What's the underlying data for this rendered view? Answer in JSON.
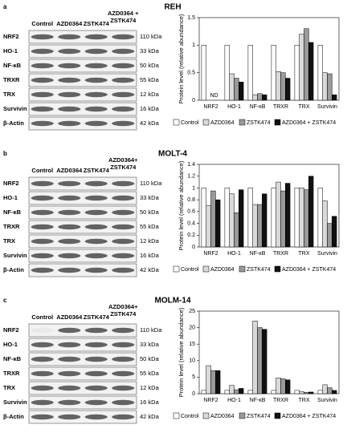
{
  "panels": [
    {
      "label": "a",
      "title": "REH",
      "columns": [
        [
          "Control"
        ],
        [
          "AZD0364"
        ],
        [
          "ZSTK474"
        ],
        [
          "AZD0364 +",
          "ZSTK474"
        ]
      ],
      "rows": [
        {
          "protein": "NRF2",
          "kda": "110 kDa"
        },
        {
          "protein": "HO-1",
          "kda": "33 kDa"
        },
        {
          "protein": "NF-κB",
          "kda": "50 kDa"
        },
        {
          "protein": "TRXR",
          "kda": "55 kDa"
        },
        {
          "protein": "TRX",
          "kda": "12 kDa"
        },
        {
          "protein": "Survivin",
          "kda": "16 kDa"
        },
        {
          "protein": "β-Actin",
          "kda": "42 kDa"
        }
      ]
    },
    {
      "label": "b",
      "title": "MOLT-4",
      "columns": [
        [
          "Control"
        ],
        [
          "AZD0364"
        ],
        [
          "ZSTK474"
        ],
        [
          "AZD0364+",
          "ZSTK474"
        ]
      ],
      "rows": [
        {
          "protein": "NRF2",
          "kda": "110 kDa"
        },
        {
          "protein": "HO-1",
          "kda": "33 kDa"
        },
        {
          "protein": "NF-κB",
          "kda": "50 kDa"
        },
        {
          "protein": "TRXR",
          "kda": "55 kDa"
        },
        {
          "protein": "TRX",
          "kda": "12 kDa"
        },
        {
          "protein": "Survivin",
          "kda": "16 kDa"
        },
        {
          "protein": "β-Actin",
          "kda": "42 kDa"
        }
      ]
    },
    {
      "label": "c",
      "title": "MOLM-14",
      "columns": [
        [
          "Control"
        ],
        [
          "AZD0364"
        ],
        [
          "ZSTK474"
        ],
        [
          "AZD0364+",
          "ZSTK474"
        ]
      ],
      "rows": [
        {
          "protein": "NRF2",
          "kda": "110 kDa"
        },
        {
          "protein": "HO-1",
          "kda": "33 kDa"
        },
        {
          "protein": "NF-κB",
          "kda": "50 kDa"
        },
        {
          "protein": "TRXR",
          "kda": "55 kDa"
        },
        {
          "protein": "TRX",
          "kda": "12 kDa"
        },
        {
          "protein": "Survivin",
          "kda": "16 kDa"
        },
        {
          "protein": "β-Actin",
          "kda": "42 kDa"
        }
      ]
    }
  ],
  "chart_data": [
    {
      "type": "bar",
      "ylabel": "Protein level (relative abundance)",
      "categories": [
        "NRF2",
        "HO-1",
        "NF-κB",
        "TRXR",
        "TRX",
        "Survivin"
      ],
      "series": [
        {
          "name": "Control",
          "color": "#ffffff",
          "values": [
            1,
            1,
            1,
            1,
            1,
            1
          ]
        },
        {
          "name": "AZD0364",
          "color": "#d9d9d9",
          "values": [
            null,
            0.48,
            0.1,
            0.52,
            1.2,
            0.5
          ]
        },
        {
          "name": "ZSTK474",
          "color": "#9a9a9a",
          "values": [
            null,
            0.4,
            0.12,
            0.5,
            1.3,
            0.48
          ]
        },
        {
          "name": "AZD0364 + ZSTK474",
          "color": "#111111",
          "values": [
            null,
            0.33,
            0.1,
            0.4,
            1.05,
            0.1
          ]
        }
      ],
      "annotation": "ND",
      "ylim": [
        0,
        1.5
      ],
      "yticks": [
        0,
        0.5,
        1,
        1.5
      ]
    },
    {
      "type": "bar",
      "ylabel": "Protein level (relative abundance)",
      "categories": [
        "NRF2",
        "HO-1",
        "NF-κB",
        "TRXR",
        "TRX",
        "Survivin"
      ],
      "series": [
        {
          "name": "Control",
          "color": "#ffffff",
          "values": [
            1,
            1,
            1,
            1,
            1,
            1
          ]
        },
        {
          "name": "AZD0364",
          "color": "#d9d9d9",
          "values": [
            0.7,
            0.9,
            0.72,
            1.1,
            1.0,
            0.78
          ]
        },
        {
          "name": "ZSTK474",
          "color": "#9a9a9a",
          "values": [
            0.95,
            0.58,
            0.72,
            0.95,
            0.97,
            0.4
          ]
        },
        {
          "name": "AZD0364 + ZSTK474",
          "color": "#111111",
          "values": [
            0.8,
            0.97,
            0.9,
            1.08,
            1.2,
            0.52
          ]
        }
      ],
      "ylim": [
        0,
        1.4
      ],
      "yticks": [
        0,
        0.2,
        0.4,
        0.6,
        0.8,
        1,
        1.2,
        1.4
      ]
    },
    {
      "type": "bar",
      "ylabel": "Protein level (relative abundance)",
      "categories": [
        "NRF2",
        "HO-1",
        "NF-κB",
        "TRXR",
        "TRX",
        "Survivin"
      ],
      "series": [
        {
          "name": "Control",
          "color": "#ffffff",
          "values": [
            1,
            1,
            1,
            1,
            1,
            1
          ]
        },
        {
          "name": "AZD0364",
          "color": "#d9d9d9",
          "values": [
            8.5,
            2.5,
            22,
            4.8,
            0.6,
            2.7
          ]
        },
        {
          "name": "ZSTK474",
          "color": "#9a9a9a",
          "values": [
            7,
            1.2,
            20,
            4.5,
            0.4,
            1.8
          ]
        },
        {
          "name": "AZD0364 + ZSTK474",
          "color": "#111111",
          "values": [
            7,
            1.6,
            19.5,
            4.2,
            0.5,
            1.0
          ]
        }
      ],
      "ylim": [
        0,
        25
      ],
      "yticks": [
        0,
        5,
        10,
        15,
        20,
        25
      ]
    }
  ]
}
